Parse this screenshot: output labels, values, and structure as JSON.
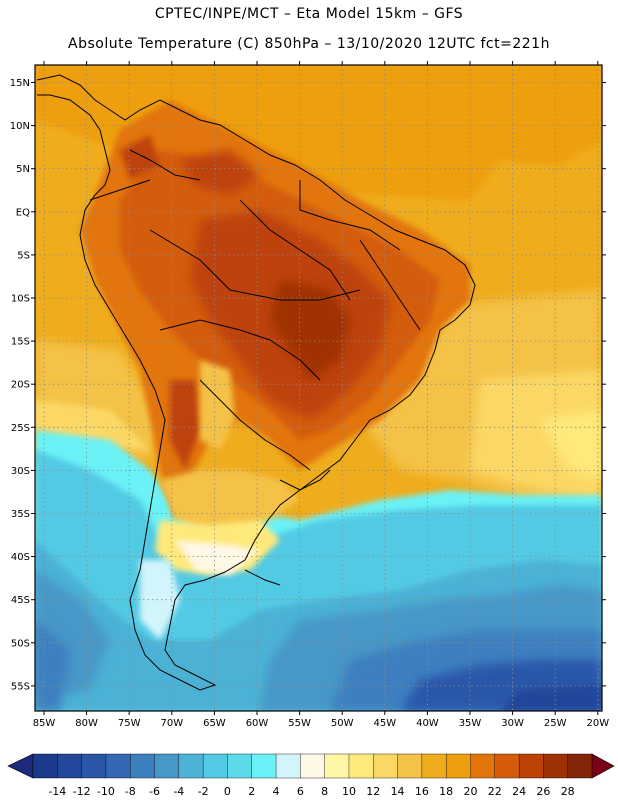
{
  "header": {
    "title_line1": "CPTEC/INPE/MCT –  Eta Model 15km – GFS",
    "title_line2": "Absolute Temperature (C) 850hPa – 13/10/2020 12UTC fct=221h"
  },
  "map": {
    "lat_labels": [
      "15N",
      "10N",
      "5N",
      "EQ",
      "5S",
      "10S",
      "15S",
      "20S",
      "25S",
      "30S",
      "35S",
      "40S",
      "45S",
      "50S",
      "55S"
    ],
    "lon_labels": [
      "85W",
      "80W",
      "75W",
      "70W",
      "65W",
      "60W",
      "55W",
      "50W",
      "45W",
      "40W",
      "35W",
      "30W",
      "25W",
      "20W"
    ]
  },
  "colorbar": {
    "labels": [
      "-14",
      "-12",
      "-10",
      "-8",
      "-6",
      "-4",
      "-2",
      "0",
      "2",
      "4",
      "6",
      "8",
      "10",
      "12",
      "14",
      "16",
      "18",
      "20",
      "22",
      "24",
      "26",
      "28"
    ],
    "colors": [
      "#1c3a8c",
      "#23479a",
      "#2b56a8",
      "#3468b4",
      "#3d7fbf",
      "#4797c8",
      "#4cb2d6",
      "#52cae4",
      "#5cdaea",
      "#6af2f6",
      "#d2f5fb",
      "#fff8e6",
      "#fff6a6",
      "#ffe97a",
      "#fbd865",
      "#f4c246",
      "#efac1d",
      "#ee9f10",
      "#e2750a",
      "#d45c0b",
      "#bd4208",
      "#9f3205",
      "#822509"
    ],
    "arrow_low_color": "#1c2b7a",
    "arrow_high_color": "#7a0016"
  }
}
